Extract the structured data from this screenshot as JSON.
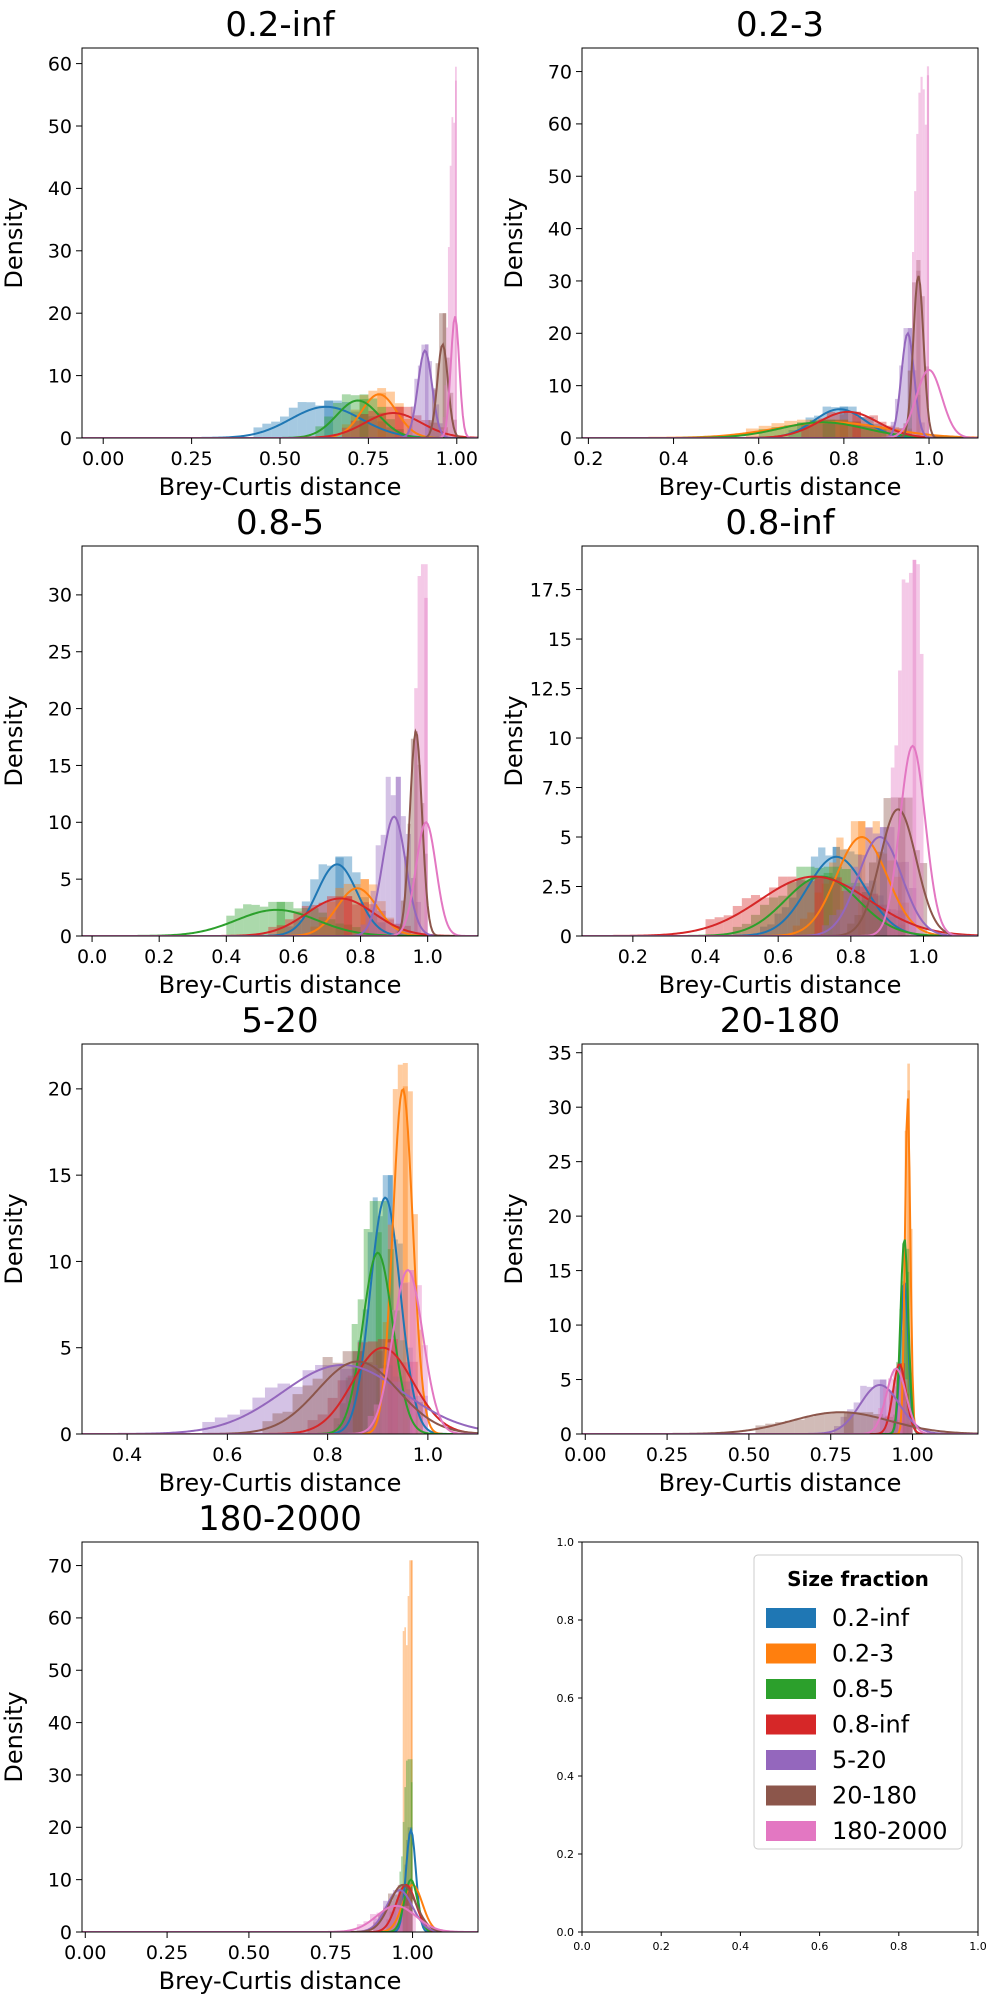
{
  "figure": {
    "legend_title": "Size fraction"
  },
  "palette": {
    "0.2-inf": "#1f77b4",
    "0.2-3": "#ff7f0e",
    "0.8-5": "#2ca02c",
    "0.8-inf": "#d62728",
    "5-20": "#9467bd",
    "20-180": "#8c564b",
    "180-2000": "#e377c2"
  },
  "legend": {
    "title": "Size fraction",
    "placement": "upper-right of last panel",
    "entries": [
      "0.2-inf",
      "0.2-3",
      "0.8-5",
      "0.8-inf",
      "5-20",
      "20-180",
      "180-2000"
    ]
  },
  "chart_data": [
    {
      "type": "histogram+kde",
      "title": "0.2-inf",
      "xlabel": "Brey-Curtis distance",
      "ylabel": "Density",
      "xlim": [
        -0.06,
        1.06
      ],
      "ylim": [
        0,
        62.5
      ],
      "xticks": [
        0.0,
        0.25,
        0.5,
        0.75,
        1.0
      ],
      "xtick_labels": [
        "0.00",
        "0.25",
        "0.50",
        "0.75",
        "1.00"
      ],
      "yticks": [
        0,
        10,
        20,
        30,
        40,
        50,
        60
      ],
      "series": [
        {
          "name": "0.2-inf",
          "kde": {
            "mu": 0.63,
            "sd": 0.1,
            "peak": 5
          },
          "hist": {
            "from": -0.05,
            "to": 0.95,
            "bw": 0.025,
            "peak": 6.0
          }
        },
        {
          "name": "0.2-3",
          "kde": {
            "mu": 0.78,
            "sd": 0.05,
            "peak": 7
          },
          "hist": {
            "from": 0.55,
            "to": 0.95,
            "bw": 0.025,
            "peak": 8.0
          }
        },
        {
          "name": "0.8-5",
          "kde": {
            "mu": 0.72,
            "sd": 0.06,
            "peak": 6
          },
          "hist": {
            "from": 0.5,
            "to": 0.9,
            "bw": 0.025,
            "peak": 7.0
          }
        },
        {
          "name": "0.8-inf",
          "kde": {
            "mu": 0.82,
            "sd": 0.08,
            "peak": 4
          },
          "hist": {
            "from": 0.55,
            "to": 0.98,
            "bw": 0.025,
            "peak": 5.0
          }
        },
        {
          "name": "5-20",
          "kde": {
            "mu": 0.91,
            "sd": 0.02,
            "peak": 14
          },
          "hist": {
            "from": 0.82,
            "to": 0.96,
            "bw": 0.01,
            "peak": 15.0
          }
        },
        {
          "name": "20-180",
          "kde": {
            "mu": 0.96,
            "sd": 0.015,
            "peak": 15
          },
          "hist": {
            "from": 0.88,
            "to": 1.0,
            "bw": 0.01,
            "peak": 20.0
          }
        },
        {
          "name": "180-2000",
          "kde": {
            "mu": 0.995,
            "sd": 0.012,
            "peak": 19.5
          },
          "hist": {
            "from": 0.95,
            "to": 1.0,
            "bw": 0.005,
            "peak": 59.5
          }
        }
      ]
    },
    {
      "type": "histogram+kde",
      "title": "0.2-3",
      "xlabel": "Brey-Curtis distance",
      "ylabel": "Density",
      "xlim": [
        0.185,
        1.115
      ],
      "ylim": [
        0,
        74.5
      ],
      "xticks": [
        0.2,
        0.4,
        0.6,
        0.8,
        1.0
      ],
      "xtick_labels": [
        "0.2",
        "0.4",
        "0.6",
        "0.8",
        "1.0"
      ],
      "yticks": [
        0,
        10,
        20,
        30,
        40,
        50,
        60,
        70
      ],
      "series": [
        {
          "name": "0.2-inf",
          "kde": {
            "mu": 0.79,
            "sd": 0.06,
            "peak": 5.5
          },
          "hist": {
            "from": 0.55,
            "to": 0.95,
            "bw": 0.02,
            "peak": 6.0
          }
        },
        {
          "name": "0.2-3",
          "kde": {
            "mu": 0.77,
            "sd": 0.13,
            "peak": 3
          },
          "hist": {
            "from": 0.3,
            "to": 0.95,
            "bw": 0.03,
            "peak": 3.5
          }
        },
        {
          "name": "0.8-5",
          "kde": {
            "mu": 0.75,
            "sd": 0.1,
            "peak": 3
          },
          "hist": {
            "from": 0.45,
            "to": 0.95,
            "bw": 0.03,
            "peak": 3.5
          }
        },
        {
          "name": "0.8-inf",
          "kde": {
            "mu": 0.81,
            "sd": 0.07,
            "peak": 5
          },
          "hist": {
            "from": 0.6,
            "to": 0.95,
            "bw": 0.02,
            "peak": 5.0
          }
        },
        {
          "name": "5-20",
          "kde": {
            "mu": 0.95,
            "sd": 0.015,
            "peak": 20
          },
          "hist": {
            "from": 0.88,
            "to": 0.99,
            "bw": 0.01,
            "peak": 21.0
          }
        },
        {
          "name": "20-180",
          "kde": {
            "mu": 0.975,
            "sd": 0.012,
            "peak": 31
          },
          "hist": {
            "from": 0.93,
            "to": 1.0,
            "bw": 0.01,
            "peak": 34.0
          }
        },
        {
          "name": "180-2000",
          "kde": {
            "mu": 1.0,
            "sd": 0.03,
            "peak": 13
          },
          "hist": {
            "from": 0.96,
            "to": 1.0,
            "bw": 0.005,
            "peak": 71.0
          }
        }
      ]
    },
    {
      "type": "histogram+kde",
      "title": "0.8-5",
      "xlabel": "Brey-Curtis distance",
      "ylabel": "Density",
      "xlim": [
        -0.03,
        1.15
      ],
      "ylim": [
        0,
        34.3
      ],
      "xticks": [
        0.0,
        0.2,
        0.4,
        0.6,
        0.8,
        1.0
      ],
      "xtick_labels": [
        "0.0",
        "0.2",
        "0.4",
        "0.6",
        "0.8",
        "1.0"
      ],
      "yticks": [
        0,
        5,
        10,
        15,
        20,
        25,
        30
      ],
      "series": [
        {
          "name": "0.2-inf",
          "kde": {
            "mu": 0.73,
            "sd": 0.06,
            "peak": 6.3
          },
          "hist": {
            "from": 0.5,
            "to": 0.95,
            "bw": 0.025,
            "peak": 7.0
          }
        },
        {
          "name": "0.2-3",
          "kde": {
            "mu": 0.79,
            "sd": 0.06,
            "peak": 4.2
          },
          "hist": {
            "from": 0.55,
            "to": 0.95,
            "bw": 0.025,
            "peak": 5.0
          }
        },
        {
          "name": "0.8-5",
          "kde": {
            "mu": 0.55,
            "sd": 0.12,
            "peak": 2.3
          },
          "hist": {
            "from": 0.4,
            "to": 0.9,
            "bw": 0.025,
            "peak": 3.0
          }
        },
        {
          "name": "0.8-inf",
          "kde": {
            "mu": 0.74,
            "sd": 0.1,
            "peak": 3.3
          },
          "hist": {
            "from": 0.5,
            "to": 0.95,
            "bw": 0.025,
            "peak": 3.5
          }
        },
        {
          "name": "5-20",
          "kde": {
            "mu": 0.9,
            "sd": 0.035,
            "peak": 10.5
          },
          "hist": {
            "from": 0.8,
            "to": 0.97,
            "bw": 0.015,
            "peak": 14.0
          }
        },
        {
          "name": "20-180",
          "kde": {
            "mu": 0.965,
            "sd": 0.018,
            "peak": 18
          },
          "hist": {
            "from": 0.9,
            "to": 1.0,
            "bw": 0.01,
            "peak": 18.0
          }
        },
        {
          "name": "180-2000",
          "kde": {
            "mu": 0.995,
            "sd": 0.03,
            "peak": 10
          },
          "hist": {
            "from": 0.96,
            "to": 1.0,
            "bw": 0.01,
            "peak": 32.7
          }
        }
      ]
    },
    {
      "type": "histogram+kde",
      "title": "0.8-inf",
      "xlabel": "Brey-Curtis distance",
      "ylabel": "Density",
      "xlim": [
        0.06,
        1.15
      ],
      "ylim": [
        0,
        19.7
      ],
      "xticks": [
        0.2,
        0.4,
        0.6,
        0.8,
        1.0
      ],
      "xtick_labels": [
        "0.2",
        "0.4",
        "0.6",
        "0.8",
        "1.0"
      ],
      "yticks": [
        0.0,
        2.5,
        5.0,
        7.5,
        10.0,
        12.5,
        15.0,
        17.5
      ],
      "series": [
        {
          "name": "0.2-inf",
          "kde": {
            "mu": 0.76,
            "sd": 0.08,
            "peak": 4
          },
          "hist": {
            "from": 0.55,
            "to": 0.95,
            "bw": 0.02,
            "peak": 4.5
          }
        },
        {
          "name": "0.2-3",
          "kde": {
            "mu": 0.83,
            "sd": 0.07,
            "peak": 5
          },
          "hist": {
            "from": 0.6,
            "to": 0.95,
            "bw": 0.02,
            "peak": 5.8
          }
        },
        {
          "name": "0.8-5",
          "kde": {
            "mu": 0.72,
            "sd": 0.1,
            "peak": 3
          },
          "hist": {
            "from": 0.45,
            "to": 0.95,
            "bw": 0.025,
            "peak": 3.5
          }
        },
        {
          "name": "0.8-inf",
          "kde": {
            "mu": 0.7,
            "sd": 0.15,
            "peak": 3
          },
          "hist": {
            "from": 0.4,
            "to": 0.95,
            "bw": 0.025,
            "peak": 3.0
          }
        },
        {
          "name": "5-20",
          "kde": {
            "mu": 0.88,
            "sd": 0.06,
            "peak": 5
          },
          "hist": {
            "from": 0.7,
            "to": 0.98,
            "bw": 0.02,
            "peak": 5.5
          }
        },
        {
          "name": "20-180",
          "kde": {
            "mu": 0.93,
            "sd": 0.05,
            "peak": 6.4
          },
          "hist": {
            "from": 0.75,
            "to": 1.0,
            "bw": 0.02,
            "peak": 7.0
          }
        },
        {
          "name": "180-2000",
          "kde": {
            "mu": 0.97,
            "sd": 0.035,
            "peak": 9.6
          },
          "hist": {
            "from": 0.9,
            "to": 1.0,
            "bw": 0.01,
            "peak": 19.0
          }
        }
      ]
    },
    {
      "type": "histogram+kde",
      "title": "5-20",
      "xlabel": "Brey-Curtis distance",
      "ylabel": "Density",
      "xlim": [
        0.31,
        1.1
      ],
      "ylim": [
        0,
        22.6
      ],
      "xticks": [
        0.4,
        0.6,
        0.8,
        1.0
      ],
      "xtick_labels": [
        "0.4",
        "0.6",
        "0.8",
        "1.0"
      ],
      "yticks": [
        0,
        5,
        10,
        15,
        20
      ],
      "series": [
        {
          "name": "0.2-inf",
          "kde": {
            "mu": 0.915,
            "sd": 0.03,
            "peak": 13.7
          },
          "hist": {
            "from": 0.82,
            "to": 0.97,
            "bw": 0.01,
            "peak": 15.0
          }
        },
        {
          "name": "0.2-3",
          "kde": {
            "mu": 0.95,
            "sd": 0.02,
            "peak": 20
          },
          "hist": {
            "from": 0.88,
            "to": 0.99,
            "bw": 0.01,
            "peak": 21.5
          }
        },
        {
          "name": "0.8-5",
          "kde": {
            "mu": 0.9,
            "sd": 0.03,
            "peak": 10.5
          },
          "hist": {
            "from": 0.8,
            "to": 0.96,
            "bw": 0.012,
            "peak": 13.5
          }
        },
        {
          "name": "0.8-inf",
          "kde": {
            "mu": 0.91,
            "sd": 0.06,
            "peak": 5
          },
          "hist": {
            "from": 0.7,
            "to": 0.98,
            "bw": 0.02,
            "peak": 5.5
          }
        },
        {
          "name": "5-20",
          "kde": {
            "mu": 0.83,
            "sd": 0.12,
            "peak": 4
          },
          "hist": {
            "from": 0.55,
            "to": 0.98,
            "bw": 0.025,
            "peak": 4.0
          }
        },
        {
          "name": "20-180",
          "kde": {
            "mu": 0.86,
            "sd": 0.08,
            "peak": 4.2
          },
          "hist": {
            "from": 0.65,
            "to": 0.98,
            "bw": 0.02,
            "peak": 4.8
          }
        },
        {
          "name": "180-2000",
          "kde": {
            "mu": 0.96,
            "sd": 0.03,
            "peak": 9.5
          },
          "hist": {
            "from": 0.88,
            "to": 1.0,
            "bw": 0.012,
            "peak": 9.5
          }
        }
      ]
    },
    {
      "type": "histogram+kde",
      "title": "20-180",
      "xlabel": "Brey-Curtis distance",
      "ylabel": "Density",
      "xlim": [
        -0.01,
        1.2
      ],
      "ylim": [
        0,
        35.8
      ],
      "xticks": [
        0.0,
        0.25,
        0.5,
        0.75,
        1.0
      ],
      "xtick_labels": [
        "0.00",
        "0.25",
        "0.50",
        "0.75",
        "1.00"
      ],
      "yticks": [
        0,
        5,
        10,
        15,
        20,
        25,
        30,
        35
      ],
      "series": [
        {
          "name": "0.2-inf",
          "kde": {
            "mu": 0.975,
            "sd": 0.012,
            "peak": 14
          },
          "hist": {
            "from": 0.93,
            "to": 1.0,
            "bw": 0.01,
            "peak": 13.0
          }
        },
        {
          "name": "0.2-3",
          "kde": {
            "mu": 0.985,
            "sd": 0.008,
            "peak": 31
          },
          "hist": {
            "from": 0.96,
            "to": 1.0,
            "bw": 0.008,
            "peak": 34.0
          }
        },
        {
          "name": "0.8-5",
          "kde": {
            "mu": 0.975,
            "sd": 0.012,
            "peak": 18
          },
          "hist": {
            "from": 0.94,
            "to": 1.0,
            "bw": 0.01,
            "peak": 17.0
          }
        },
        {
          "name": "0.8-inf",
          "kde": {
            "mu": 0.96,
            "sd": 0.02,
            "peak": 6.4
          },
          "hist": {
            "from": 0.88,
            "to": 1.0,
            "bw": 0.012,
            "peak": 6.5
          }
        },
        {
          "name": "5-20",
          "kde": {
            "mu": 0.9,
            "sd": 0.06,
            "peak": 4.5
          },
          "hist": {
            "from": 0.7,
            "to": 0.99,
            "bw": 0.02,
            "peak": 5.0
          }
        },
        {
          "name": "20-180",
          "kde": {
            "mu": 0.78,
            "sd": 0.15,
            "peak": 2
          },
          "hist": {
            "from": 0.4,
            "to": 0.99,
            "bw": 0.03,
            "peak": 2.0
          }
        },
        {
          "name": "180-2000",
          "kde": {
            "mu": 0.95,
            "sd": 0.03,
            "peak": 6
          },
          "hist": {
            "from": 0.85,
            "to": 1.0,
            "bw": 0.015,
            "peak": 6.0
          }
        }
      ]
    },
    {
      "type": "histogram+kde",
      "title": "180-2000",
      "xlabel": "Brey-Curtis distance",
      "ylabel": "Density",
      "xlim": [
        -0.01,
        1.2
      ],
      "ylim": [
        0,
        74.5
      ],
      "xticks": [
        0.0,
        0.25,
        0.5,
        0.75,
        1.0
      ],
      "xtick_labels": [
        "0.00",
        "0.25",
        "0.50",
        "0.75",
        "1.00"
      ],
      "yticks": [
        0,
        10,
        20,
        30,
        40,
        50,
        60,
        70
      ],
      "series": [
        {
          "name": "0.2-inf",
          "kde": {
            "mu": 0.995,
            "sd": 0.015,
            "peak": 19.5
          },
          "hist": {
            "from": 0.96,
            "to": 1.0,
            "bw": 0.005,
            "peak": 20.0
          }
        },
        {
          "name": "0.2-3",
          "kde": {
            "mu": 1.0,
            "sd": 0.03,
            "peak": 9
          },
          "hist": {
            "from": 0.97,
            "to": 1.0,
            "bw": 0.005,
            "peak": 71.0
          }
        },
        {
          "name": "0.8-5",
          "kde": {
            "mu": 0.995,
            "sd": 0.02,
            "peak": 10
          },
          "hist": {
            "from": 0.96,
            "to": 1.0,
            "bw": 0.005,
            "peak": 33.0
          }
        },
        {
          "name": "0.8-inf",
          "kde": {
            "mu": 0.98,
            "sd": 0.03,
            "peak": 9
          },
          "hist": {
            "from": 0.9,
            "to": 1.0,
            "bw": 0.01,
            "peak": 8.0
          }
        },
        {
          "name": "5-20",
          "kde": {
            "mu": 0.96,
            "sd": 0.04,
            "peak": 8
          },
          "hist": {
            "from": 0.85,
            "to": 1.0,
            "bw": 0.015,
            "peak": 8.0
          }
        },
        {
          "name": "20-180",
          "kde": {
            "mu": 0.97,
            "sd": 0.04,
            "peak": 9
          },
          "hist": {
            "from": 0.85,
            "to": 1.0,
            "bw": 0.015,
            "peak": 9.0
          }
        },
        {
          "name": "180-2000",
          "kde": {
            "mu": 0.95,
            "sd": 0.06,
            "peak": 5
          },
          "hist": {
            "from": 0.75,
            "to": 1.0,
            "bw": 0.02,
            "peak": 5.0
          }
        }
      ]
    },
    {
      "type": "empty-axes",
      "title": "",
      "xlim": [
        0,
        1
      ],
      "ylim": [
        0,
        1
      ],
      "xticks": [
        0.0,
        0.2,
        0.4,
        0.6,
        0.8,
        1.0
      ],
      "xtick_labels": [
        "0.0",
        "0.2",
        "0.4",
        "0.6",
        "0.8",
        "1.0"
      ],
      "yticks": [
        0.0,
        0.2,
        0.4,
        0.6,
        0.8,
        1.0
      ],
      "ytick_labels": [
        "0.0",
        "0.2",
        "0.4",
        "0.6",
        "0.8",
        "1.0"
      ]
    }
  ]
}
